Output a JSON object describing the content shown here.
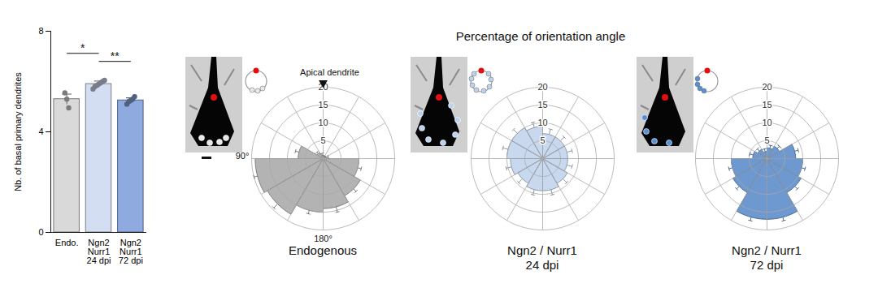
{
  "chart_data": [
    {
      "type": "bar",
      "categories": [
        "Endo.",
        "Ngn2\nNurr1\n24 dpi",
        "Ngn2\nNurr1\n72 dpi"
      ],
      "values": [
        5.3,
        5.9,
        5.25
      ],
      "errors": [
        0.2,
        0.12,
        0.1
      ],
      "points": [
        [
          5.55,
          5.3,
          4.95
        ],
        [
          5.7,
          5.8,
          5.85,
          5.9,
          5.95,
          6.0,
          6.05
        ],
        [
          5.1,
          5.2,
          5.25,
          5.3,
          5.4
        ]
      ],
      "colors": [
        "#d9d9d9",
        "#d4def3",
        "#8eaadf"
      ],
      "ylabel": "Nb. of basal primary dendrites",
      "ylim": [
        0,
        8
      ],
      "yticks": [
        0,
        4,
        8
      ],
      "annotations": [
        {
          "text": "*",
          "from": 0,
          "to": 1
        },
        {
          "text": "**",
          "from": 1,
          "to": 2
        }
      ]
    },
    {
      "type": "polar_bar",
      "title": "Percentage of orientation angle",
      "theta": [
        0,
        30,
        60,
        90,
        120,
        150,
        180,
        210,
        240,
        270,
        300,
        330
      ],
      "rlim": [
        0,
        20
      ],
      "rticks": [
        5,
        10,
        15,
        20
      ],
      "panels": [
        {
          "name": "Endogenous",
          "color": "#b3b3b3",
          "values": [
            1,
            2,
            7,
            19,
            18,
            15,
            14,
            12,
            10,
            1,
            0.5,
            0.5
          ],
          "errors": [
            0.5,
            0.5,
            1,
            1,
            1.5,
            1,
            1.5,
            1,
            1,
            0.5,
            0.3,
            0.3
          ],
          "reference_label": "Apical dendrite",
          "angle_labels": [
            {
              "value": 90,
              "label": "90°"
            },
            {
              "value": 180,
              "label": "180°"
            }
          ]
        },
        {
          "name": "Ngn2 / Nurr1\n24 dpi",
          "color": "#c8d8ef",
          "values": [
            9,
            10,
            10,
            9,
            8,
            9,
            9,
            8,
            7,
            7,
            7,
            7
          ],
          "errors": [
            1.5,
            1.5,
            1.5,
            1.5,
            1.5,
            1.5,
            1.5,
            1.5,
            1.5,
            1.5,
            1.5,
            1.5
          ]
        },
        {
          "name": "Ngn2 / Nurr1\n72 dpi",
          "color": "#6d98d0",
          "values": [
            2,
            3,
            4,
            10,
            11,
            17,
            17,
            11,
            10,
            8,
            4,
            3
          ],
          "errors": [
            0.8,
            0.8,
            1,
            1,
            1,
            1,
            1,
            1,
            1,
            1,
            0.8,
            0.8
          ]
        }
      ]
    }
  ]
}
